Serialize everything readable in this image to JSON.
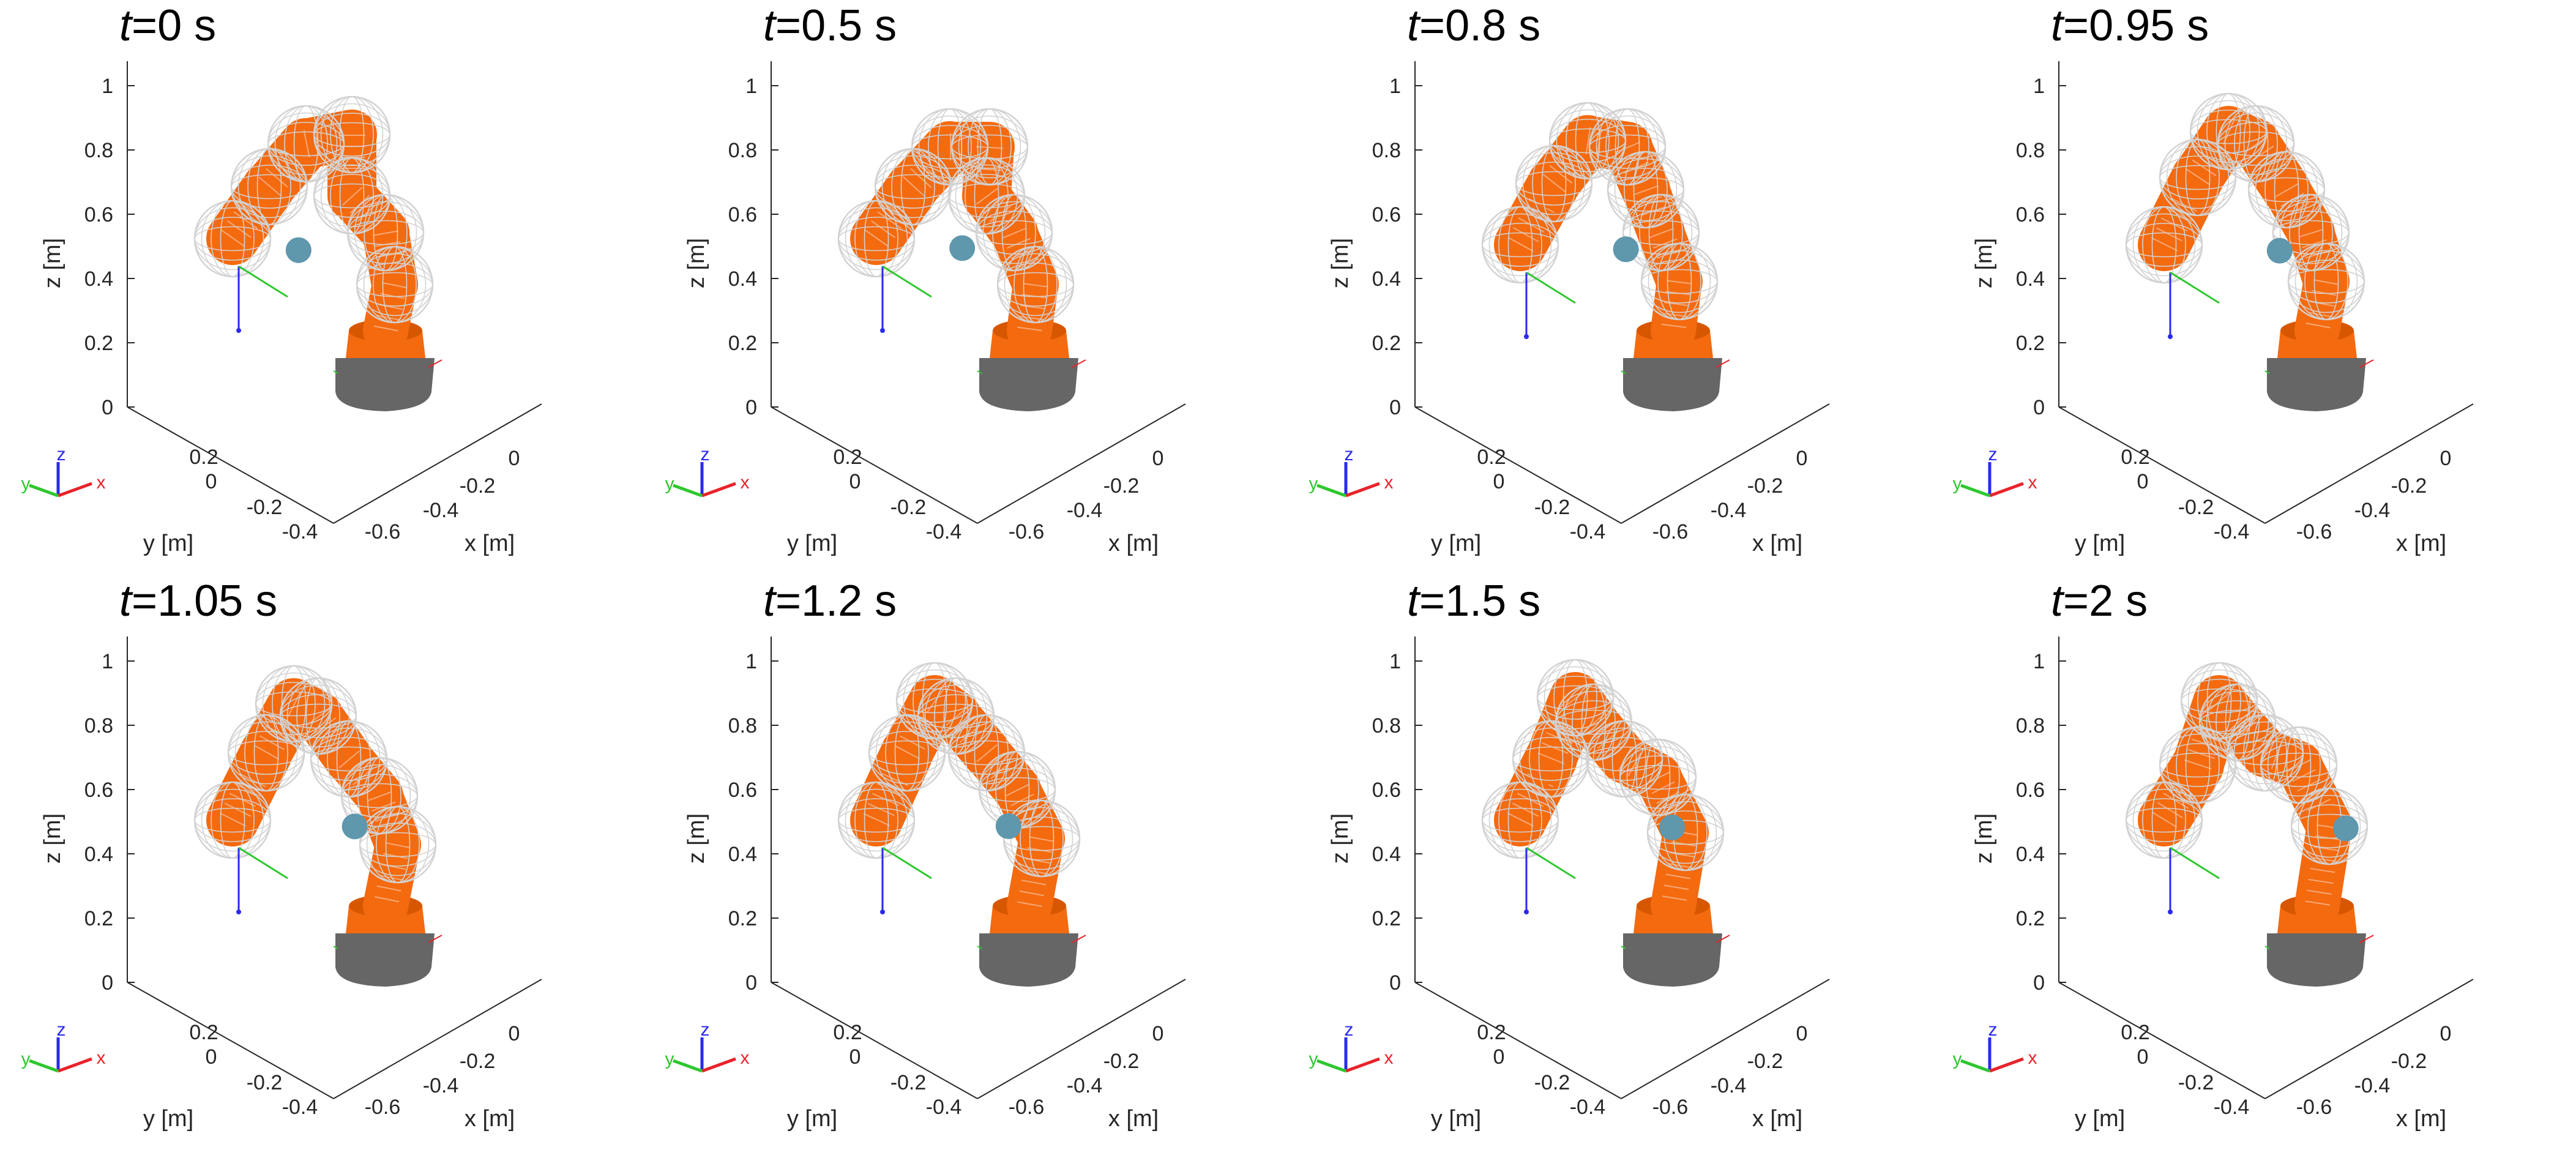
{
  "colors": {
    "link": "#f46a0f",
    "link_dark": "#d75700",
    "base": "#666666",
    "sphere": "#d2d2d2",
    "obstacle": "#5f97ad",
    "axis": "#262626",
    "x_axis": "#e8232a",
    "y_axis": "#2ec72e",
    "z_axis": "#2a2af0"
  },
  "axes": {
    "z_ticks": [
      "0",
      "0.2",
      "0.4",
      "0.6",
      "0.8",
      "1"
    ],
    "y_ticks": [
      "0.2",
      "0",
      "-0.2",
      "-0.4"
    ],
    "x_ticks": [
      "0",
      "-0.2",
      "-0.4",
      "-0.6"
    ],
    "z_label": "z [m]",
    "y_label": "y [m]",
    "x_label": "x [m]",
    "triad": {
      "x": "x",
      "y": "y",
      "z": "z"
    }
  },
  "panels": [
    {
      "t_var": "t",
      "t_rest": "=0 s",
      "obstacle": {
        "x": -0.42,
        "y": -0.08,
        "z": 0.64
      }
    },
    {
      "t_var": "t",
      "t_rest": "=0.5 s",
      "obstacle": {
        "x": -0.42,
        "y": -0.02,
        "z": 0.69
      }
    },
    {
      "t_var": "t",
      "t_rest": "=0.8 s",
      "obstacle": {
        "x": -0.42,
        "y": 0.04,
        "z": 0.72
      }
    },
    {
      "t_var": "t",
      "t_rest": "=0.95 s",
      "obstacle": {
        "x": -0.42,
        "y": 0.07,
        "z": 0.73
      }
    },
    {
      "t_var": "t",
      "t_rest": "=1.05 s",
      "obstacle": {
        "x": -0.42,
        "y": 0.09,
        "z": 0.74
      }
    },
    {
      "t_var": "t",
      "t_rest": "=1.2 s",
      "obstacle": {
        "x": -0.42,
        "y": 0.12,
        "z": 0.76
      }
    },
    {
      "t_var": "t",
      "t_rest": "=1.5 s",
      "obstacle": {
        "x": -0.42,
        "y": 0.18,
        "z": 0.79
      }
    },
    {
      "t_var": "t",
      "t_rest": "=2 s",
      "obstacle": {
        "x": -0.42,
        "y": 0.27,
        "z": 0.84
      }
    }
  ]
}
